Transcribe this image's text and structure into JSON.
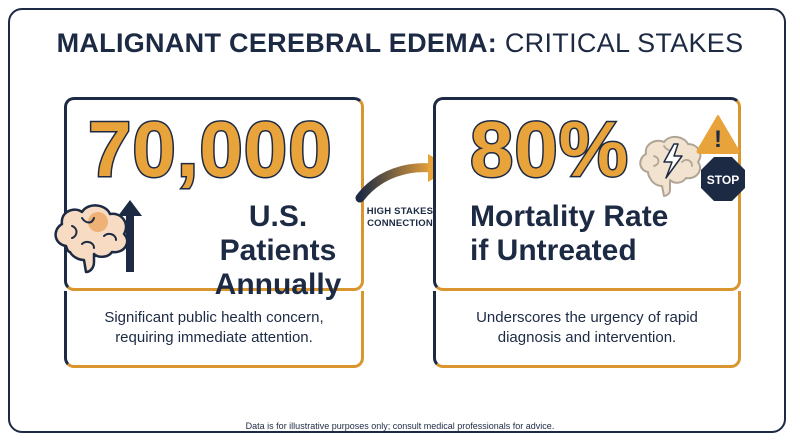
{
  "title": {
    "strong": "MALIGNANT CEREBRAL EDEMA:",
    "light": "CRITICAL STAKES"
  },
  "left_card": {
    "number": "70,000",
    "label_line1": "U.S. Patients",
    "label_line2": "Annually",
    "description_line1": "Significant public health concern,",
    "description_line2": "requiring immediate attention."
  },
  "right_card": {
    "number": "80%",
    "label_line1": "Mortality Rate",
    "label_line2": "if Untreated",
    "description_line1": "Underscores the urgency of rapid",
    "description_line2": "diagnosis and intervention.",
    "stop_sign_text": "STOP",
    "warning_symbol": "!"
  },
  "connector": {
    "line1": "HIGH STAKES",
    "line2": "CONNECTION"
  },
  "footer": "Data is for illustrative purposes only; consult medical professionals for advice.",
  "colors": {
    "navy": "#1d2a44",
    "gold": "#e9a33b",
    "gold_border": "#d9962f",
    "brain_fill": "#f7dcc3"
  },
  "icons": [
    "brain-icon",
    "up-arrow-icon",
    "curved-arrow-icon",
    "warning-icon",
    "stop-sign-icon",
    "lightning-brain-icon"
  ]
}
